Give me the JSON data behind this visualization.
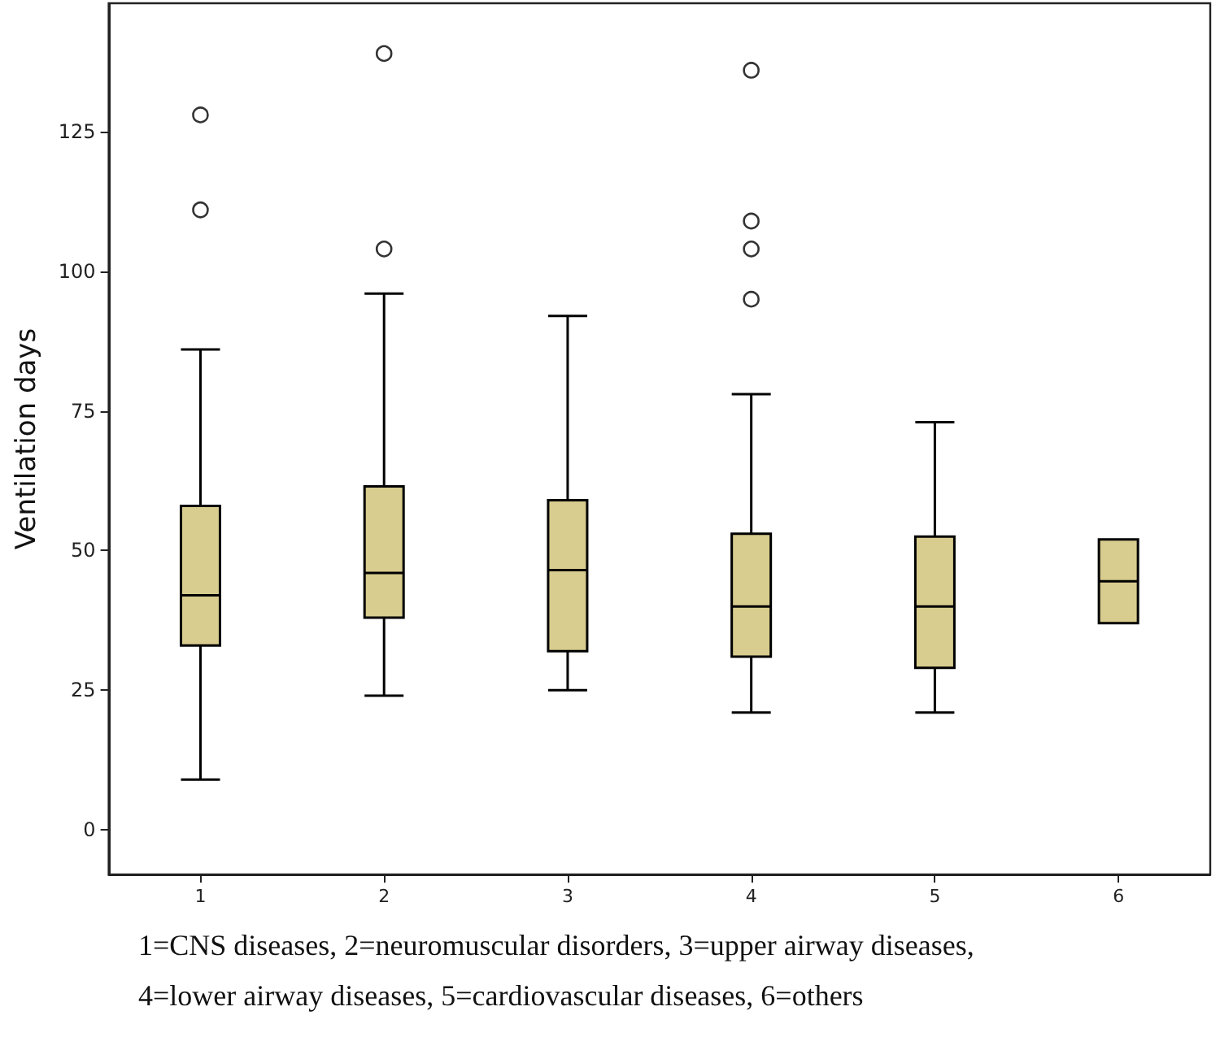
{
  "chart_data": {
    "type": "box",
    "ylabel": "Ventilation days",
    "categories": [
      "1",
      "2",
      "3",
      "4",
      "5",
      "6"
    ],
    "color": "#d8cc8e",
    "boxes": [
      {
        "low": 9,
        "q1": 33,
        "median": 42,
        "q3": 58,
        "high": 86,
        "outliers": [
          111,
          128
        ]
      },
      {
        "low": 24,
        "q1": 38,
        "median": 46,
        "q3": 61.5,
        "high": 96,
        "outliers": [
          104,
          139
        ]
      },
      {
        "low": 25,
        "q1": 32,
        "median": 46.5,
        "q3": 59,
        "high": 92
      },
      {
        "low": 21,
        "q1": 31,
        "median": 40,
        "q3": 53,
        "high": 78,
        "outliers": [
          95,
          104,
          109,
          136
        ]
      },
      {
        "low": 21,
        "q1": 29,
        "median": 40,
        "q3": 52.5,
        "high": 73
      },
      {
        "low": 37,
        "q1": 37,
        "median": 44.5,
        "q3": 52,
        "high": 52
      }
    ],
    "ylim": [
      -8,
      148
    ],
    "yticks": [
      0,
      25,
      50,
      75,
      100,
      125
    ],
    "annotations": [
      "1=CNS diseases, 2=neuromuscular disorders, 3=upper airway diseases, 4=lower airway diseases, 5=cardiovascular diseases, 6=others"
    ]
  }
}
